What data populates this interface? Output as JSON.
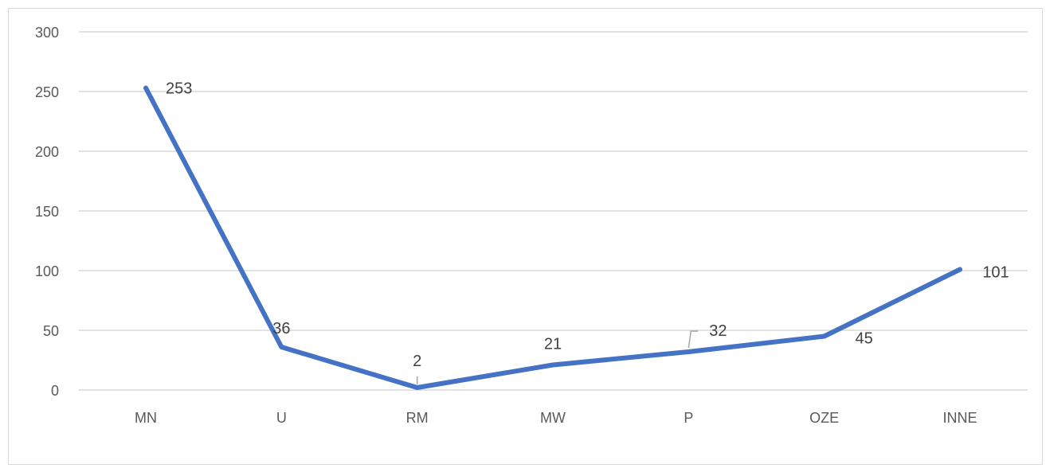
{
  "chart_data": {
    "type": "line",
    "categories": [
      "MN",
      "U",
      "RM",
      "MW",
      "P",
      "OZE",
      "INNE"
    ],
    "series": [
      {
        "values": [
          253,
          36,
          2,
          21,
          32,
          45,
          101
        ],
        "color": "#4472c4"
      }
    ],
    "data_labels": [
      "253",
      "36",
      "2",
      "21",
      "32",
      "45",
      "101"
    ],
    "y_ticks": [
      "0",
      "50",
      "100",
      "150",
      "200",
      "250",
      "300"
    ],
    "ylim": [
      0,
      300
    ],
    "grid": true,
    "title": "",
    "xlabel": "",
    "ylabel": ""
  }
}
